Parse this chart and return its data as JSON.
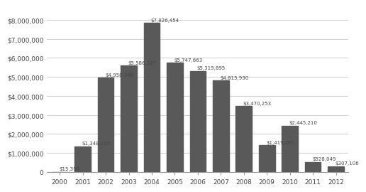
{
  "categories": [
    "2000",
    "2001",
    "2002",
    "2003",
    "2004",
    "2005",
    "2006",
    "2007",
    "2008",
    "2009",
    "2010",
    "2011",
    "2012"
  ],
  "values": [
    15390,
    1348155,
    4958346,
    5586337,
    7826454,
    5747663,
    5319895,
    4815930,
    3470253,
    1419065,
    2445210,
    528049,
    307106
  ],
  "labels": [
    "$15,390",
    "$1,348,155",
    "$4,958,346",
    "$5,586,337",
    "$7,826,454",
    "$5,747,663",
    "$5,319,895",
    "$4,815,930",
    "$3,470,253",
    "$1,419,065",
    "$2,445,210",
    "$528,049",
    "$307,106"
  ],
  "bar_color": "#595959",
  "background_color": "#ffffff",
  "ylim": [
    0,
    8700000
  ],
  "yticks": [
    0,
    1000000,
    2000000,
    3000000,
    4000000,
    5000000,
    6000000,
    7000000,
    8000000
  ],
  "ytick_labels": [
    "0",
    "$1,000,000",
    "$2,000,000",
    "$3,000,000",
    "$4,000,000",
    "$5,000,000",
    "$6,000,000",
    "$7,000,000",
    "$8,000,000"
  ],
  "label_fontsize": 5.0,
  "tick_fontsize": 6.5,
  "bar_width": 0.7
}
